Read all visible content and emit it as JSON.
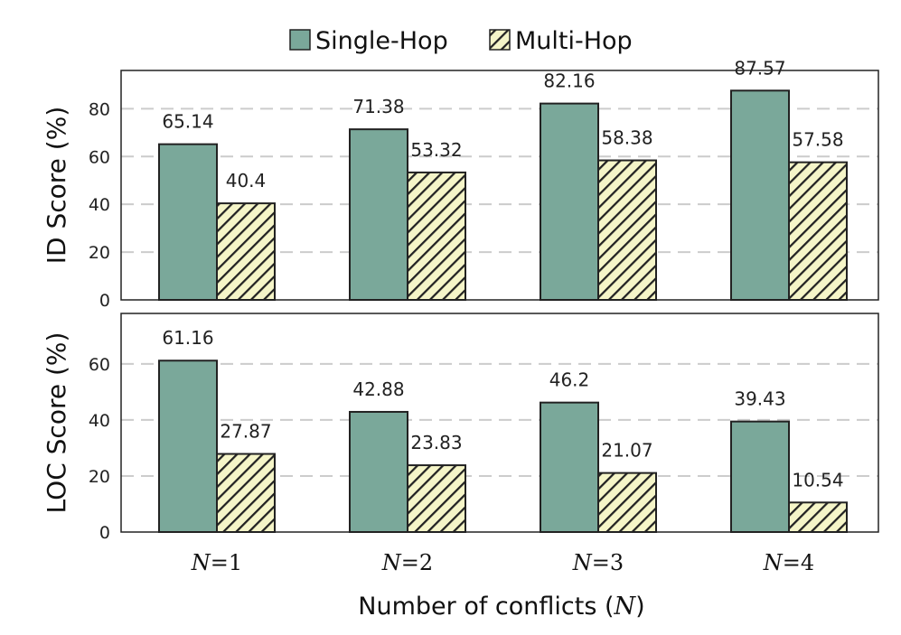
{
  "chart_data": [
    {
      "type": "bar",
      "panel": "top",
      "ylabel": "ID Score (%)",
      "ylim": [
        0,
        96
      ],
      "yticks": [
        0,
        20,
        40,
        60,
        80
      ],
      "grid": true,
      "categories": [
        "N=1",
        "N=2",
        "N=3",
        "N=4"
      ],
      "series": [
        {
          "name": "Single-Hop",
          "values": [
            65.14,
            71.38,
            82.16,
            87.57
          ]
        },
        {
          "name": "Multi-Hop",
          "values": [
            40.4,
            53.32,
            58.38,
            57.58
          ]
        }
      ],
      "value_labels": {
        "Single-Hop": [
          "65.14",
          "71.38",
          "82.16",
          "87.57"
        ],
        "Multi-Hop": [
          "40.4",
          "53.32",
          "58.38",
          "57.58"
        ]
      }
    },
    {
      "type": "bar",
      "panel": "bottom",
      "ylabel": "LOC Score (%)",
      "ylim": [
        0,
        78
      ],
      "yticks": [
        0,
        20,
        40,
        60
      ],
      "grid": true,
      "categories": [
        "N=1",
        "N=2",
        "N=3",
        "N=4"
      ],
      "series": [
        {
          "name": "Single-Hop",
          "values": [
            61.16,
            42.88,
            46.2,
            39.43
          ]
        },
        {
          "name": "Multi-Hop",
          "values": [
            27.87,
            23.83,
            21.07,
            10.54
          ]
        }
      ],
      "value_labels": {
        "Single-Hop": [
          "61.16",
          "42.88",
          "46.2",
          "39.43"
        ],
        "Multi-Hop": [
          "27.87",
          "23.83",
          "21.07",
          "10.54"
        ]
      }
    }
  ],
  "legend": {
    "position": "top-center",
    "items": [
      {
        "label": "Single-Hop",
        "pattern": "solid",
        "color": "#7aa89a"
      },
      {
        "label": "Multi-Hop",
        "pattern": "hatched",
        "color": "#f5f5c8",
        "hatch_color": "#222222"
      }
    ]
  },
  "x_categories": [
    {
      "var": "N",
      "rest": "=1"
    },
    {
      "var": "N",
      "rest": "=2"
    },
    {
      "var": "N",
      "rest": "=3"
    },
    {
      "var": "N",
      "rest": "=4"
    }
  ],
  "xlabel": {
    "text": "Number of conflicts (",
    "var": "N",
    "close": ")"
  },
  "colors": {
    "single": "#7aa89a",
    "multi_bg": "#f5f5c8",
    "hatch": "#222222",
    "grid": "#cccccc",
    "frame": "#222222"
  }
}
